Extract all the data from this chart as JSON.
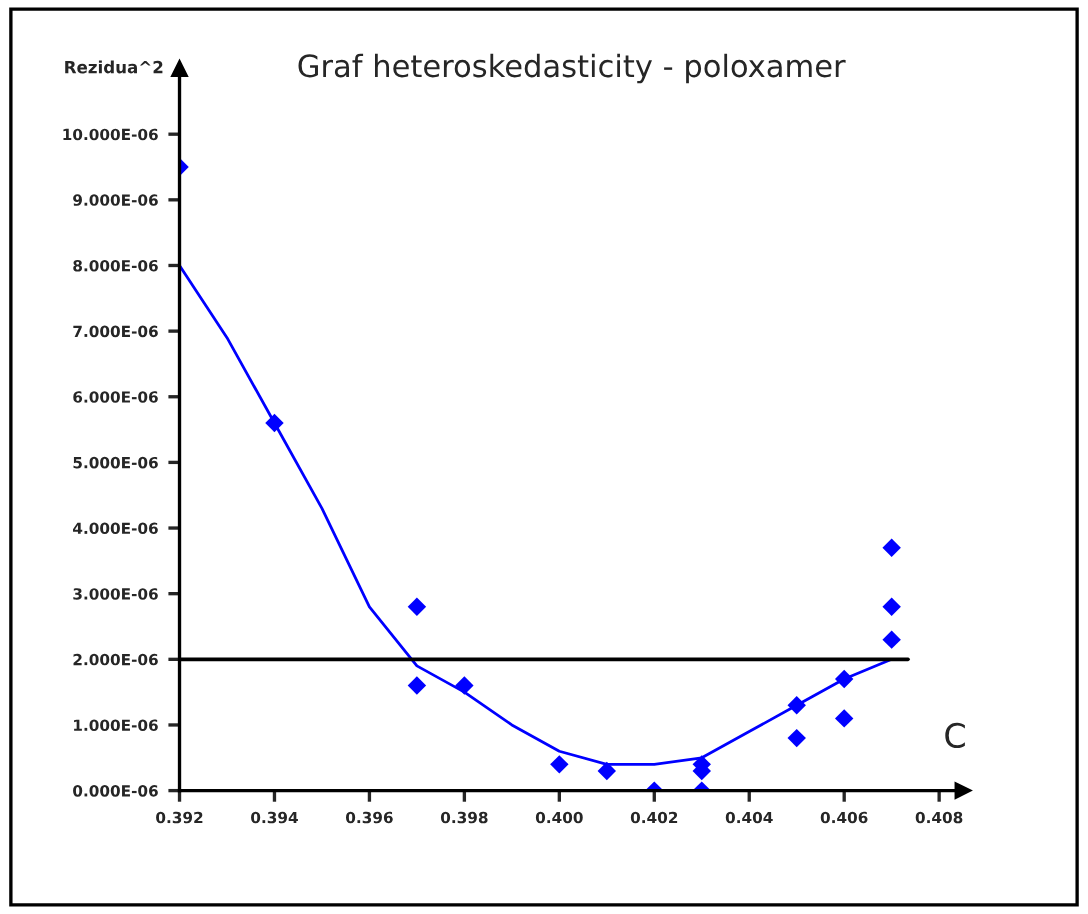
{
  "chart_data": {
    "type": "scatter",
    "title": "Graf heteroskedasticity - poloxamer",
    "xlabel": "C",
    "ylabel": "Rezidua^2",
    "series": [
      {
        "color": "#0000ff",
        "marker": "diamond",
        "x": [
          0.392,
          0.394,
          0.397,
          0.397,
          0.398,
          0.4,
          0.401,
          0.402,
          0.403,
          0.403,
          0.403,
          0.405,
          0.405,
          0.406,
          0.406,
          0.407,
          0.407,
          0.407
        ],
        "values": [
          9.5e-06,
          5.6e-06,
          2.8e-06,
          1.6e-06,
          1.6e-06,
          4e-07,
          3e-07,
          0.0,
          4e-07,
          3e-07,
          0.0,
          1.3e-06,
          8e-07,
          1.7e-06,
          1.1e-06,
          3.7e-06,
          2.8e-06,
          2.3e-06
        ]
      },
      {
        "type": "line",
        "color": "#0000ff",
        "x": [
          0.392,
          0.393,
          0.394,
          0.395,
          0.396,
          0.397,
          0.398,
          0.399,
          0.4,
          0.401,
          0.402,
          0.403,
          0.404,
          0.405,
          0.406,
          0.407
        ],
        "values": [
          8e-06,
          6.9e-06,
          5.6e-06,
          4.3e-06,
          2.8e-06,
          1.9e-06,
          1.5e-06,
          1e-06,
          6e-07,
          4e-07,
          4e-07,
          5e-07,
          9e-07,
          1.3e-06,
          1.7e-06,
          2e-06
        ]
      }
    ],
    "xlim": [
      0.392,
      0.4085
    ],
    "ylim": [
      0,
      1.1e-05
    ],
    "xticks": [
      0.392,
      0.394,
      0.396,
      0.398,
      {
        "value": 0.4,
        "label": "0.400"
      },
      0.402,
      0.404,
      0.406,
      0.408
    ],
    "yticks": [
      {
        "value": 0,
        "label": "0.000E-06"
      },
      {
        "value": 1e-06,
        "label": "1.000E-06"
      },
      {
        "value": 2e-06,
        "label": "2.000E-06"
      },
      {
        "value": 3e-06,
        "label": "3.000E-06"
      },
      {
        "value": 4e-06,
        "label": "4.000E-06"
      },
      {
        "value": 5e-06,
        "label": "5.000E-06"
      },
      {
        "value": 6e-06,
        "label": "6.000E-06"
      },
      {
        "value": 7e-06,
        "label": "7.000E-06"
      },
      {
        "value": 8e-06,
        "label": "8.000E-06"
      },
      {
        "value": 9e-06,
        "label": "9.000E-06"
      },
      {
        "value": 1e-05,
        "label": "10.000E-06"
      }
    ],
    "ref_lines": [
      {
        "axis": "y",
        "value": 2e-06,
        "color": "#000000"
      }
    ],
    "grid": false
  }
}
